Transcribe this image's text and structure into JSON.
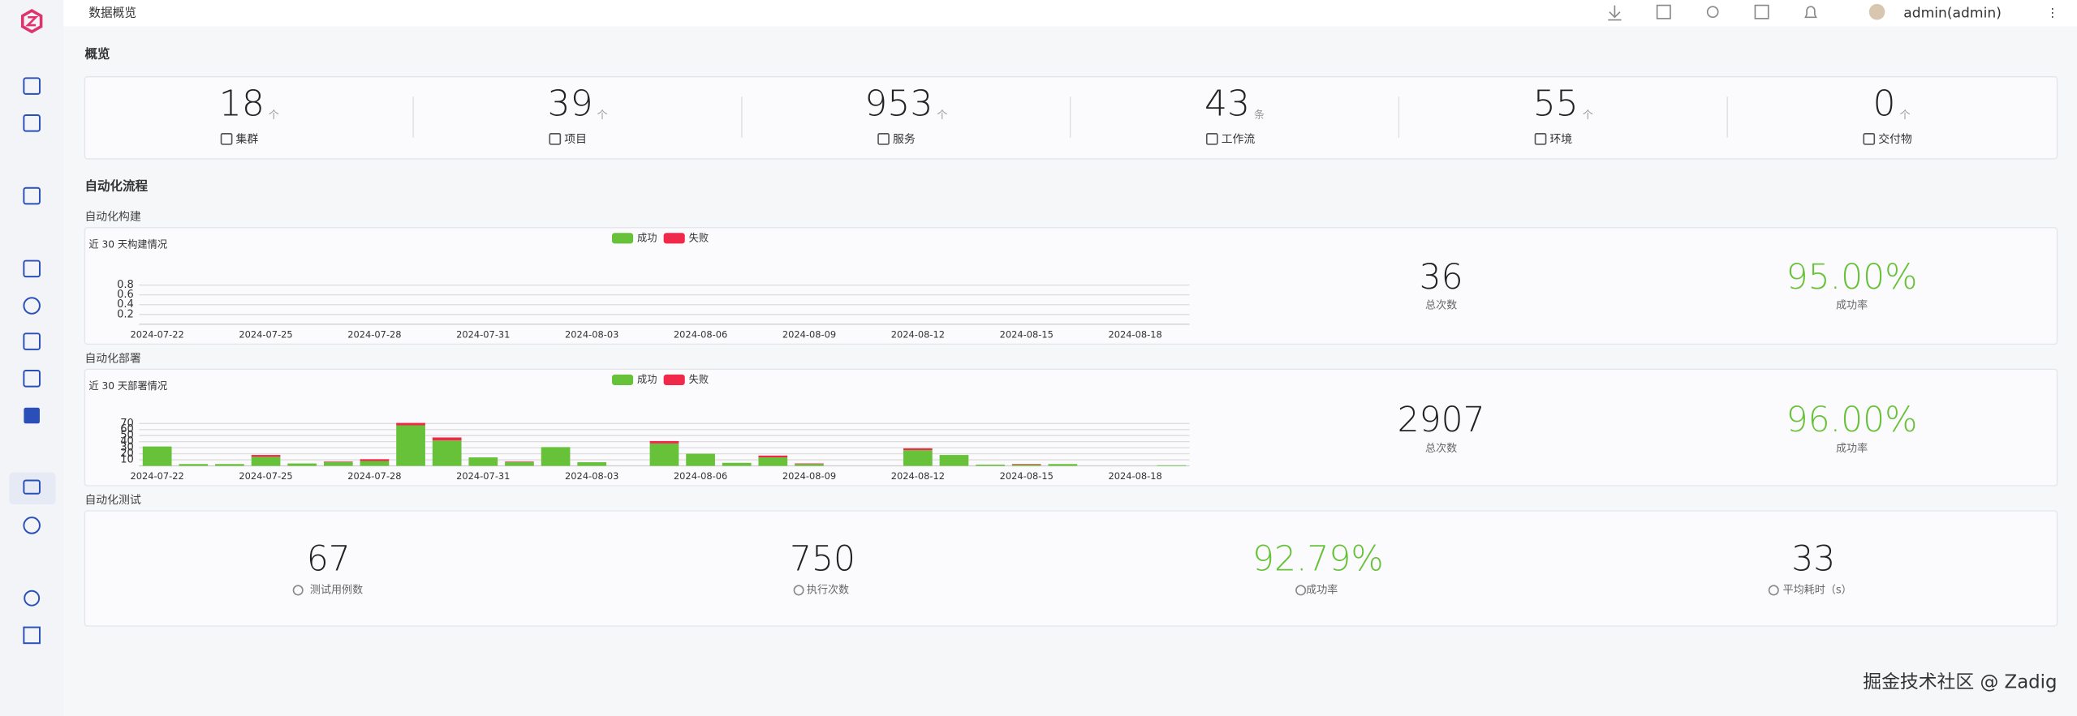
{
  "header": {
    "breadcrumb": "数据概览",
    "user": "admin(admin)"
  },
  "overview": {
    "title": "概览",
    "items": [
      {
        "value": 18,
        "unit": "个",
        "label": "集群"
      },
      {
        "value": 39,
        "unit": "个",
        "label": "项目"
      },
      {
        "value": 953,
        "unit": "个",
        "label": "服务"
      },
      {
        "value": 43,
        "unit": "条",
        "label": "工作流"
      },
      {
        "value": 55,
        "unit": "个",
        "label": "环境"
      },
      {
        "value": 0,
        "unit": "个",
        "label": "交付物"
      }
    ]
  },
  "automation": {
    "title": "自动化流程",
    "build": {
      "title": "自动化构建",
      "stats": [
        {
          "value": 36,
          "label": "总次数"
        },
        {
          "value": "95.00%",
          "label": "成功率"
        }
      ]
    },
    "deploy": {
      "title": "自动化部署",
      "stats": [
        {
          "value": 2907,
          "label": "总次数"
        },
        {
          "value": "96.00%",
          "label": "成功率"
        }
      ]
    },
    "test": {
      "title": "自动化测试",
      "stats": [
        {
          "value": 67,
          "label": "测试用例数"
        },
        {
          "value": 750,
          "label": "执行次数"
        },
        {
          "value": "92.79%",
          "label": "成功率"
        },
        {
          "value": 33,
          "label": "平均耗时（s）"
        }
      ]
    }
  },
  "chart_data": [
    {
      "type": "bar",
      "stacked": true,
      "title": "近 30 天构建情况",
      "categories": [
        "2024-07-22",
        null,
        null,
        "2024-07-25",
        null,
        null,
        "2024-07-28",
        null,
        null,
        "2024-07-31",
        null,
        null,
        "2024-08-03",
        null,
        null,
        "2024-08-06",
        null,
        null,
        "2024-08-09",
        null,
        null,
        "2024-08-12",
        null,
        null,
        "2024-08-15",
        null,
        null,
        "2024-08-18",
        null
      ],
      "series": [
        {
          "name": "成功",
          "color": "#67c23a",
          "values": [
            0,
            0,
            0,
            0,
            0,
            0,
            0,
            0,
            0,
            0,
            0,
            0,
            0,
            0,
            0,
            0,
            0,
            0,
            0,
            0,
            0,
            0,
            0,
            0,
            0,
            0,
            0,
            0,
            0
          ]
        },
        {
          "name": "失败",
          "color": "#f0284a",
          "values": [
            0,
            0,
            0,
            0,
            0,
            0,
            0,
            0,
            0,
            0,
            0,
            0,
            0,
            0,
            0,
            0,
            0,
            0,
            0,
            0,
            0,
            0,
            0,
            0,
            0,
            0,
            0,
            0,
            0
          ]
        }
      ],
      "ylim": [
        0,
        1
      ],
      "yticks": [
        0.2,
        0.4,
        0.6,
        0.8
      ],
      "grid": true
    },
    {
      "type": "bar",
      "stacked": true,
      "title": "近 30 天部署情况",
      "categories": [
        "2024-07-22",
        null,
        null,
        "2024-07-25",
        null,
        null,
        "2024-07-28",
        null,
        null,
        "2024-07-31",
        null,
        null,
        "2024-08-03",
        null,
        null,
        "2024-08-06",
        null,
        null,
        "2024-08-09",
        null,
        null,
        "2024-08-12",
        null,
        null,
        "2024-08-15",
        null,
        null,
        "2024-08-18",
        null
      ],
      "series": [
        {
          "name": "成功",
          "color": "#67c23a",
          "values": [
            32,
            3,
            3,
            15,
            4,
            6,
            8,
            67,
            42,
            14,
            6,
            31,
            6,
            0,
            37,
            20,
            5,
            14,
            3,
            0,
            0,
            26,
            18,
            2,
            2,
            3,
            0,
            0,
            1
          ]
        },
        {
          "name": "失败",
          "color": "#f0284a",
          "values": [
            0,
            0,
            0,
            3,
            0,
            1,
            3,
            4,
            5,
            0,
            1,
            0,
            0,
            0,
            4,
            0,
            0,
            3,
            1,
            0,
            0,
            3,
            0,
            0,
            1,
            0,
            0,
            0,
            0
          ]
        }
      ],
      "ylim": [
        0,
        70
      ],
      "yticks": [
        10,
        20,
        30,
        40,
        50,
        60,
        70
      ],
      "grid": true
    }
  ],
  "watermark": "掘金技术社区 @ Zadig"
}
